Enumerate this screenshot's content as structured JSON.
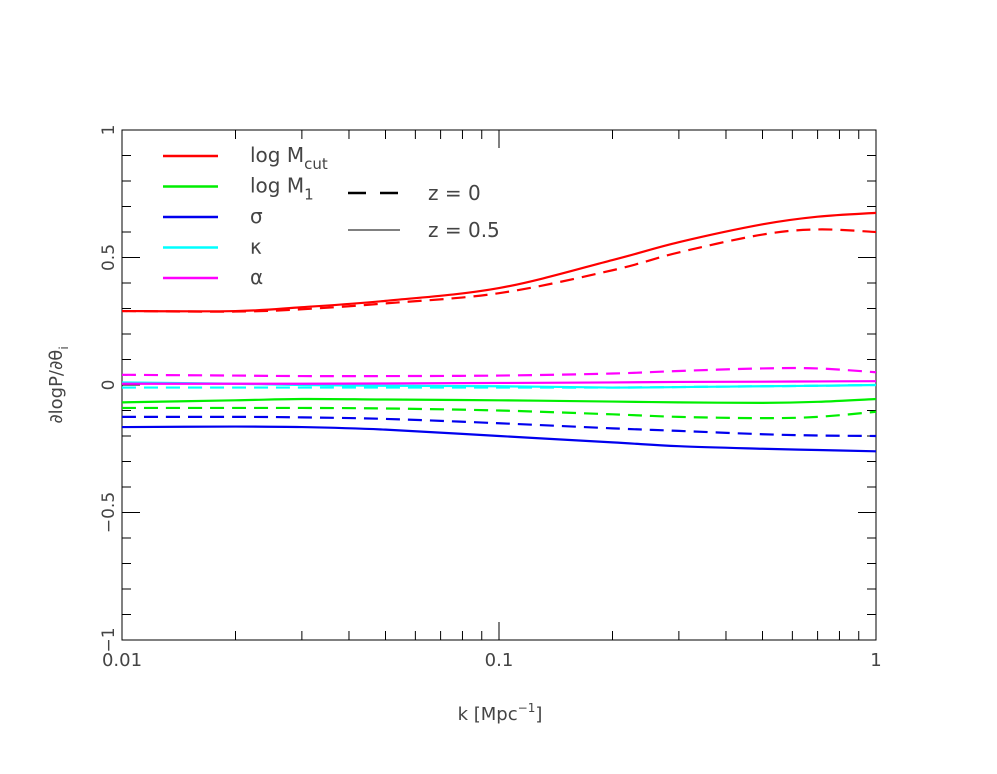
{
  "chart_data": {
    "type": "line",
    "title": "",
    "xlabel": "k [Mpc",
    "xlabel_sup": "−1",
    "xlabel_close": "]",
    "ylabel": "∂logP/∂θ",
    "ylabel_sub": "i",
    "xscale": "log",
    "xlim": [
      0.01,
      1
    ],
    "ylim": [
      -1,
      1
    ],
    "x_ticks": [
      {
        "v": 0.01,
        "label": "0.01"
      },
      {
        "v": 0.1,
        "label": "0.1"
      },
      {
        "v": 1,
        "label": "1"
      }
    ],
    "y_ticks": [
      {
        "v": -1,
        "label": "−1"
      },
      {
        "v": -0.5,
        "label": "−0.5"
      },
      {
        "v": 0,
        "label": "0"
      },
      {
        "v": 0.5,
        "label": "0.5"
      },
      {
        "v": 1,
        "label": "1"
      }
    ],
    "x": [
      0.01,
      0.02,
      0.03,
      0.05,
      0.1,
      0.2,
      0.3,
      0.5,
      0.7,
      1.0
    ],
    "series": [
      {
        "name": "log M",
        "sub": "cut",
        "color": "#ff0000",
        "z": "0.5",
        "style": "solid",
        "values": [
          0.29,
          0.29,
          0.305,
          0.33,
          0.38,
          0.49,
          0.56,
          0.63,
          0.66,
          0.675
        ]
      },
      {
        "name": "log M",
        "sub": "cut",
        "color": "#ff0000",
        "z": "0",
        "style": "dashed",
        "values": [
          0.29,
          0.288,
          0.297,
          0.32,
          0.36,
          0.45,
          0.52,
          0.59,
          0.61,
          0.6
        ]
      },
      {
        "name": "log M",
        "sub": "1",
        "color": "#00ee00",
        "z": "0.5",
        "style": "solid",
        "values": [
          -0.068,
          -0.06,
          -0.055,
          -0.057,
          -0.06,
          -0.065,
          -0.068,
          -0.07,
          -0.066,
          -0.055
        ]
      },
      {
        "name": "log M",
        "sub": "1",
        "color": "#00ee00",
        "z": "0",
        "style": "dashed",
        "values": [
          -0.09,
          -0.09,
          -0.09,
          -0.092,
          -0.1,
          -0.115,
          -0.125,
          -0.13,
          -0.125,
          -0.105
        ]
      },
      {
        "name": "σ",
        "sub": "",
        "color": "#0000ee",
        "z": "0.5",
        "style": "solid",
        "values": [
          -0.165,
          -0.163,
          -0.165,
          -0.175,
          -0.2,
          -0.225,
          -0.24,
          -0.25,
          -0.255,
          -0.26
        ]
      },
      {
        "name": "σ",
        "sub": "",
        "color": "#0000ee",
        "z": "0",
        "style": "dashed",
        "values": [
          -0.125,
          -0.125,
          -0.127,
          -0.133,
          -0.15,
          -0.17,
          -0.18,
          -0.193,
          -0.198,
          -0.2
        ]
      },
      {
        "name": "κ",
        "sub": "",
        "color": "#00ffff",
        "z": "0.5",
        "style": "solid",
        "values": [
          0.01,
          0.005,
          0.0,
          -0.003,
          -0.005,
          -0.01,
          -0.008,
          -0.005,
          -0.003,
          0.0
        ]
      },
      {
        "name": "κ",
        "sub": "",
        "color": "#00ffff",
        "z": "0",
        "style": "dashed",
        "values": [
          -0.01,
          -0.01,
          -0.01,
          -0.01,
          -0.01,
          -0.01,
          -0.008,
          -0.005,
          -0.003,
          0.0
        ]
      },
      {
        "name": "α",
        "sub": "",
        "color": "#ff00ff",
        "z": "0.5",
        "style": "solid",
        "values": [
          0.005,
          0.005,
          0.005,
          0.006,
          0.008,
          0.01,
          0.012,
          0.013,
          0.014,
          0.015
        ]
      },
      {
        "name": "α",
        "sub": "",
        "color": "#ff00ff",
        "z": "0",
        "style": "dashed",
        "values": [
          0.04,
          0.037,
          0.035,
          0.035,
          0.037,
          0.045,
          0.055,
          0.065,
          0.065,
          0.05
        ]
      }
    ],
    "legend": {
      "placement": "top-left",
      "params": [
        {
          "name": "log M",
          "sub": "cut",
          "color": "#ff0000"
        },
        {
          "name": "log M",
          "sub": "1",
          "color": "#00ee00"
        },
        {
          "name": "σ",
          "sub": "",
          "color": "#0000ee"
        },
        {
          "name": "κ",
          "sub": "",
          "color": "#00ffff"
        },
        {
          "name": "α",
          "sub": "",
          "color": "#ff00ff"
        }
      ],
      "styles": [
        {
          "label": "z = 0",
          "style": "dashed"
        },
        {
          "label": "z = 0.5",
          "style": "solid"
        }
      ]
    }
  }
}
